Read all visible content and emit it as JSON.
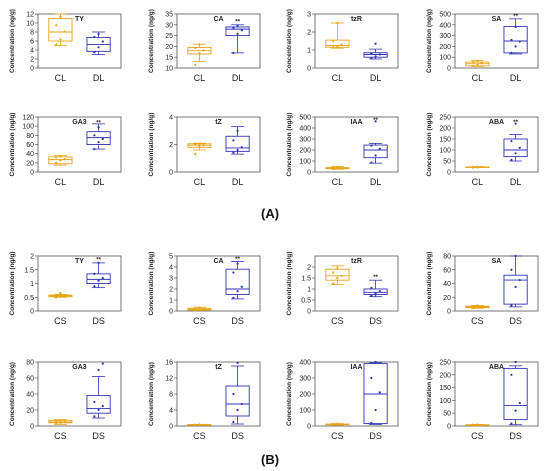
{
  "figure": {
    "panel_a_label": "(A)",
    "panel_b_label": "(B)"
  },
  "colors": {
    "first_group": "#e8a317",
    "second_group": "#2f33b8"
  },
  "chart_data": [
    {
      "type": "box",
      "title": "TY",
      "ylabel": "Concentration (ng/g)",
      "ylim": [
        0,
        12
      ],
      "yticks": [
        0,
        2,
        4,
        6,
        8,
        10,
        12
      ],
      "categories": [
        "CL",
        "DL"
      ],
      "boxes": [
        {
          "min": 5,
          "q1": 6,
          "median": 8,
          "q3": 11,
          "max": 12,
          "points": [
            5.2,
            6.4,
            8.1,
            9.5,
            11.4
          ]
        },
        {
          "min": 3,
          "q1": 3.7,
          "median": 5.2,
          "q3": 6.8,
          "max": 8,
          "points": [
            3.5,
            4.6,
            5.9,
            6.9,
            7.5
          ]
        }
      ],
      "sig": "",
      "sig_y": 0
    },
    {
      "type": "box",
      "title": "CA",
      "ylabel": "Concentration (ng/g)",
      "ylim": [
        10,
        35
      ],
      "yticks": [
        10,
        15,
        20,
        25,
        30,
        35
      ],
      "categories": [
        "CL",
        "DL"
      ],
      "boxes": [
        {
          "min": 13,
          "q1": 16.5,
          "median": 18,
          "q3": 19.5,
          "max": 21,
          "points": [
            11.5,
            16.8,
            18.2,
            19.3,
            21
          ]
        },
        {
          "min": 17,
          "q1": 25,
          "median": 28,
          "q3": 29,
          "max": 30,
          "points": [
            17,
            25.8,
            27.5,
            28.6,
            29.5
          ]
        }
      ],
      "sig": "**",
      "sig_y": 31.5
    },
    {
      "type": "box",
      "title": "tzR",
      "ylabel": "Concentration (ng/g)",
      "ylim": [
        0,
        3
      ],
      "yticks": [
        0,
        1,
        2,
        3
      ],
      "categories": [
        "CL",
        "DL"
      ],
      "boxes": [
        {
          "min": 1.1,
          "q1": 1.15,
          "median": 1.25,
          "q3": 1.55,
          "max": 2.5,
          "points": [
            1.15,
            1.2,
            1.3,
            1.5,
            2.5
          ]
        },
        {
          "min": 0.5,
          "q1": 0.6,
          "median": 0.75,
          "q3": 0.85,
          "max": 1.05,
          "points": [
            0.55,
            0.65,
            0.75,
            0.8,
            1.35
          ]
        }
      ],
      "sig": "",
      "sig_y": 0
    },
    {
      "type": "box",
      "title": "SA",
      "ylabel": "Concentration (ng/g)",
      "ylim": [
        0,
        500
      ],
      "yticks": [
        0,
        100,
        200,
        300,
        400,
        500
      ],
      "categories": [
        "CL",
        "DL"
      ],
      "boxes": [
        {
          "min": 15,
          "q1": 20,
          "median": 40,
          "q3": 55,
          "max": 70,
          "points": [
            20,
            30,
            45,
            55,
            65
          ]
        },
        {
          "min": 130,
          "q1": 140,
          "median": 250,
          "q3": 385,
          "max": 455,
          "points": [
            140,
            200,
            245,
            260,
            380
          ]
        }
      ],
      "sig": "**",
      "sig_y": 480
    },
    {
      "type": "box",
      "title": "GA3",
      "ylabel": "Concentration (ng/g)",
      "ylim": [
        0,
        120
      ],
      "yticks": [
        0,
        20,
        40,
        60,
        80,
        100,
        120
      ],
      "categories": [
        "CL",
        "DL"
      ],
      "boxes": [
        {
          "min": 15,
          "q1": 18,
          "median": 27,
          "q3": 33,
          "max": 36,
          "points": [
            20,
            25,
            28,
            32,
            34
          ]
        },
        {
          "min": 50,
          "q1": 60,
          "median": 75,
          "q3": 88,
          "max": 105,
          "points": [
            50,
            65,
            72,
            80,
            98
          ]
        }
      ],
      "sig": "**",
      "sig_y": 108
    },
    {
      "type": "box",
      "title": "tZ",
      "ylabel": "Concentration (ng/g)",
      "ylim": [
        0,
        4
      ],
      "yticks": [
        0,
        2,
        4
      ],
      "categories": [
        "CL",
        "DL"
      ],
      "boxes": [
        {
          "min": 1.6,
          "q1": 1.8,
          "median": 1.95,
          "q3": 2.05,
          "max": 2.1,
          "points": [
            1.3,
            1.85,
            1.95,
            2.0,
            2.05
          ]
        },
        {
          "min": 1.3,
          "q1": 1.5,
          "median": 1.75,
          "q3": 2.6,
          "max": 3.3,
          "points": [
            1.4,
            1.6,
            1.8,
            2.3,
            3.0
          ]
        }
      ],
      "sig": "",
      "sig_y": 0
    },
    {
      "type": "box",
      "title": "IAA",
      "ylabel": "Concentration (ng/g)",
      "ylim": [
        0,
        500
      ],
      "yticks": [
        0,
        100,
        200,
        300,
        400,
        500
      ],
      "categories": [
        "CL",
        "DL"
      ],
      "boxes": [
        {
          "min": 25,
          "q1": 30,
          "median": 35,
          "q3": 40,
          "max": 50,
          "points": [
            28,
            33,
            36,
            40,
            45
          ]
        },
        {
          "min": 80,
          "q1": 130,
          "median": 200,
          "q3": 245,
          "max": 260,
          "points": [
            85,
            150,
            210,
            240,
            460
          ]
        }
      ],
      "sig": "**",
      "sig_y": 475
    },
    {
      "type": "box",
      "title": "ABA",
      "ylabel": "Concentration (ng/g)",
      "ylim": [
        0,
        250
      ],
      "yticks": [
        0,
        50,
        100,
        150,
        200,
        250
      ],
      "categories": [
        "CL",
        "DL"
      ],
      "boxes": [
        {
          "min": 20,
          "q1": 21,
          "median": 22,
          "q3": 23,
          "max": 24,
          "points": [
            20,
            21,
            22,
            23,
            24
          ]
        },
        {
          "min": 50,
          "q1": 70,
          "median": 100,
          "q3": 150,
          "max": 170,
          "points": [
            55,
            85,
            110,
            140,
            220
          ]
        }
      ],
      "sig": "**",
      "sig_y": 228
    },
    {
      "type": "box",
      "title": "TY",
      "ylabel": "Concentration (ng/g)",
      "ylim": [
        0,
        2
      ],
      "yticks": [
        0,
        0.5,
        1,
        1.5,
        2
      ],
      "categories": [
        "CS",
        "DS"
      ],
      "boxes": [
        {
          "min": 0.5,
          "q1": 0.52,
          "median": 0.55,
          "q3": 0.58,
          "max": 0.6,
          "points": [
            0.5,
            0.54,
            0.56,
            0.58,
            0.65
          ]
        },
        {
          "min": 0.85,
          "q1": 1.0,
          "median": 1.15,
          "q3": 1.35,
          "max": 1.75,
          "points": [
            0.9,
            1.1,
            1.2,
            1.35,
            1.75
          ]
        }
      ],
      "sig": "**",
      "sig_y": 1.88
    },
    {
      "type": "box",
      "title": "CA",
      "ylabel": "Concentration (ng/g)",
      "ylim": [
        0,
        5
      ],
      "yticks": [
        0,
        1,
        2,
        3,
        4,
        5
      ],
      "categories": [
        "CS",
        "DS"
      ],
      "boxes": [
        {
          "min": 0.05,
          "q1": 0.1,
          "median": 0.15,
          "q3": 0.25,
          "max": 0.35,
          "points": [
            0.05,
            0.1,
            0.15,
            0.2,
            0.3
          ]
        },
        {
          "min": 1.1,
          "q1": 1.5,
          "median": 2.0,
          "q3": 3.8,
          "max": 4.5,
          "points": [
            1.2,
            1.8,
            2.2,
            3.5,
            4.3
          ]
        }
      ],
      "sig": "**",
      "sig_y": 4.75
    },
    {
      "type": "box",
      "title": "tzR",
      "ylabel": "Concentration (ng/g)",
      "ylim": [
        0,
        2.5
      ],
      "yticks": [
        0,
        0.5,
        1,
        1.5,
        2
      ],
      "categories": [
        "CS",
        "DS"
      ],
      "boxes": [
        {
          "min": 1.2,
          "q1": 1.4,
          "median": 1.6,
          "q3": 1.9,
          "max": 2.05,
          "points": [
            1.25,
            1.5,
            1.6,
            1.75,
            1.95
          ]
        },
        {
          "min": 0.65,
          "q1": 0.75,
          "median": 0.85,
          "q3": 1.0,
          "max": 1.4,
          "points": [
            0.7,
            0.8,
            0.9,
            1.05,
            0.75
          ]
        }
      ],
      "sig": "**",
      "sig_y": 1.55
    },
    {
      "type": "box",
      "title": "SA",
      "ylabel": "Concentration (ng/g)",
      "ylim": [
        0,
        80
      ],
      "yticks": [
        0,
        20,
        40,
        60,
        80
      ],
      "categories": [
        "CS",
        "DS"
      ],
      "boxes": [
        {
          "min": 4,
          "q1": 5,
          "median": 6,
          "q3": 7,
          "max": 8,
          "points": [
            4,
            5,
            6,
            7,
            8
          ]
        },
        {
          "min": 6,
          "q1": 10,
          "median": 45,
          "q3": 52,
          "max": 80,
          "points": [
            8,
            35,
            45,
            60,
            82
          ]
        }
      ],
      "sig": "",
      "sig_y": 0
    },
    {
      "type": "box",
      "title": "GA3",
      "ylabel": "Concentration (ng/g)",
      "ylim": [
        0,
        80
      ],
      "yticks": [
        0,
        20,
        40,
        60,
        80
      ],
      "categories": [
        "CS",
        "DS"
      ],
      "boxes": [
        {
          "min": 2,
          "q1": 4,
          "median": 5,
          "q3": 7,
          "max": 8,
          "points": [
            3,
            4,
            5,
            6,
            7
          ]
        },
        {
          "min": 10,
          "q1": 16,
          "median": 22,
          "q3": 38,
          "max": 62,
          "points": [
            12,
            20,
            25,
            30,
            70,
            78
          ]
        }
      ],
      "sig": "",
      "sig_y": 0
    },
    {
      "type": "box",
      "title": "tZ",
      "ylabel": "Concentration (ng/g)",
      "ylim": [
        0,
        16
      ],
      "yticks": [
        0,
        4,
        8,
        12,
        16
      ],
      "categories": [
        "CS",
        "DS"
      ],
      "boxes": [
        {
          "min": 0.2,
          "q1": 0.25,
          "median": 0.3,
          "q3": 0.35,
          "max": 0.4,
          "points": [
            0.2,
            0.25,
            0.3,
            0.35,
            0.4
          ]
        },
        {
          "min": 0.5,
          "q1": 2.5,
          "median": 5.5,
          "q3": 10,
          "max": 15,
          "points": [
            1,
            4,
            5.5,
            8,
            15.8
          ]
        }
      ],
      "sig": "",
      "sig_y": 0
    },
    {
      "type": "box",
      "title": "IAA",
      "ylabel": "Concentration (ng/g)",
      "ylim": [
        0,
        400
      ],
      "yticks": [
        0,
        100,
        200,
        300,
        400
      ],
      "categories": [
        "CS",
        "DS"
      ],
      "boxes": [
        {
          "min": 5,
          "q1": 8,
          "median": 10,
          "q3": 12,
          "max": 15,
          "points": [
            6,
            8,
            10,
            12,
            14
          ]
        },
        {
          "min": 10,
          "q1": 15,
          "median": 200,
          "q3": 390,
          "max": 395,
          "points": [
            20,
            100,
            210,
            300,
            400
          ]
        }
      ],
      "sig": "",
      "sig_y": 0
    },
    {
      "type": "box",
      "title": "ABA",
      "ylabel": "Concentration (ng/g)",
      "ylim": [
        0,
        250
      ],
      "yticks": [
        0,
        50,
        100,
        150,
        200,
        250
      ],
      "categories": [
        "CS",
        "DS"
      ],
      "boxes": [
        {
          "min": 2,
          "q1": 3,
          "median": 4,
          "q3": 5,
          "max": 6,
          "points": [
            2,
            3,
            4,
            5,
            6
          ]
        },
        {
          "min": 5,
          "q1": 25,
          "median": 80,
          "q3": 225,
          "max": 235,
          "points": [
            10,
            60,
            90,
            200,
            255
          ]
        }
      ],
      "sig": "",
      "sig_y": 0
    }
  ]
}
